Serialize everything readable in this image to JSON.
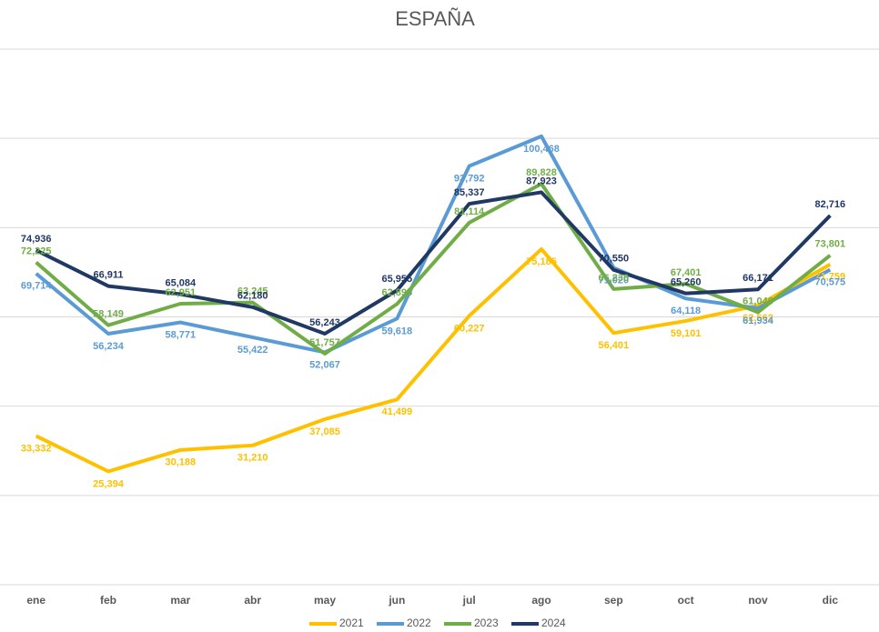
{
  "chart_data": {
    "type": "line",
    "title": "ESPAÑA",
    "categories": [
      "ene",
      "feb",
      "mar",
      "abr",
      "may",
      "jun",
      "jul",
      "ago",
      "sep",
      "oct",
      "nov",
      "dic"
    ],
    "ylim": [
      0,
      120000
    ],
    "yticks": [
      0,
      20000,
      40000,
      60000,
      80000,
      100000,
      120000
    ],
    "grid": true,
    "legend": "bottom",
    "series": [
      {
        "name": "2021",
        "color": "#ffc000",
        "values": [
          33332,
          25394,
          30188,
          31210,
          37085,
          41499,
          60227,
          75185,
          56401,
          59101,
          62562,
          71759
        ],
        "value_labels": [
          "33,332",
          "25,394",
          "30,188",
          "31,210",
          "37,085",
          "41,499",
          "60,227",
          "75,185",
          "56,401",
          "59,101",
          "62,562",
          "71,759"
        ]
      },
      {
        "name": "2022",
        "color": "#5b9bd5",
        "values": [
          69714,
          56234,
          58771,
          55422,
          52067,
          59618,
          93792,
          100468,
          71020,
          64118,
          61934,
          70575
        ],
        "value_labels": [
          "69,714",
          "56,234",
          "58,771",
          "55,422",
          "52,067",
          "59,618",
          "93,792",
          "100,468",
          "71,020",
          "64,118",
          "61,934",
          "70,575"
        ]
      },
      {
        "name": "2023",
        "color": "#70ad47",
        "values": [
          72225,
          58149,
          62951,
          63245,
          51757,
          62895,
          81114,
          89828,
          66230,
          67401,
          61046,
          73801
        ],
        "value_labels": [
          "72,225",
          "58,149",
          "62,951",
          "63,245",
          "51,757",
          "62,895",
          "81,114",
          "89,828",
          "66,230",
          "67,401",
          "61,046",
          "73,801"
        ]
      },
      {
        "name": "2024",
        "color": "#203864",
        "values": [
          74936,
          66911,
          65084,
          62180,
          56243,
          65955,
          85337,
          87923,
          70550,
          65260,
          66171,
          82716
        ],
        "value_labels": [
          "74,936",
          "66,911",
          "65,084",
          "62,180",
          "56,243",
          "65,955",
          "85,337",
          "87,923",
          "70,550",
          "65,260",
          "66,171",
          "82,716"
        ]
      }
    ]
  }
}
